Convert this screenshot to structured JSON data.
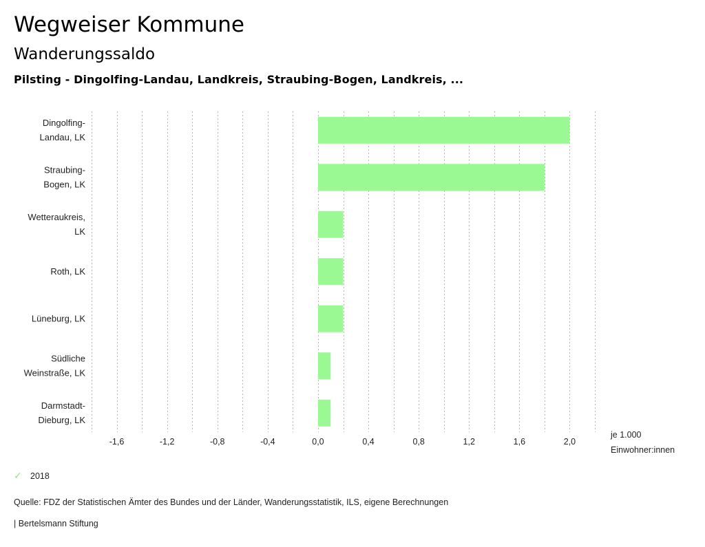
{
  "header": {
    "title": "Wegweiser Kommune",
    "subtitle": "Wanderungssaldo",
    "region": "Pilsting - Dingolfing-Landau, Landkreis, Straubing-Bogen, Landkreis, ..."
  },
  "colors": {
    "bar": "#9bf993",
    "grid": "#b5b5b5",
    "legend_check": "#8ee88e"
  },
  "chart_data": {
    "type": "bar",
    "orientation": "horizontal",
    "categories": [
      [
        "Dingolfing-",
        "Landau, LK"
      ],
      [
        "Straubing-",
        "Bogen, LK"
      ],
      [
        "Wetteraukreis,",
        "LK"
      ],
      [
        "Roth, LK"
      ],
      [
        "Lüneburg, LK"
      ],
      [
        "Südliche",
        "Weinstraße, LK"
      ],
      [
        "Darmstadt-",
        "Dieburg, LK"
      ]
    ],
    "series": [
      {
        "name": "2018",
        "values": [
          2.0,
          1.8,
          0.2,
          0.2,
          0.2,
          0.1,
          0.1
        ]
      }
    ],
    "xlim": [
      -1.8,
      2.2
    ],
    "grid_step": 0.2,
    "tick_values": [
      -1.6,
      -1.2,
      -0.8,
      -0.4,
      0.0,
      0.4,
      0.8,
      1.2,
      1.6,
      2.0
    ],
    "tick_labels": [
      "-1,6",
      "-1,2",
      "-0,8",
      "-0,4",
      "0,0",
      "0,4",
      "0,8",
      "1,2",
      "1,6",
      "2,0"
    ],
    "xlabel": [
      "je 1.000",
      "Einwohner:innen"
    ],
    "grid": true,
    "legend_position": "bottom-left"
  },
  "legend": {
    "label": "2018",
    "icon": "check-icon"
  },
  "footer": {
    "source": "Quelle: FDZ der Statistischen Ämter des Bundes und der Länder, Wanderungsstatistik, ILS, eigene Berechnungen",
    "credit": "| Bertelsmann Stiftung"
  }
}
